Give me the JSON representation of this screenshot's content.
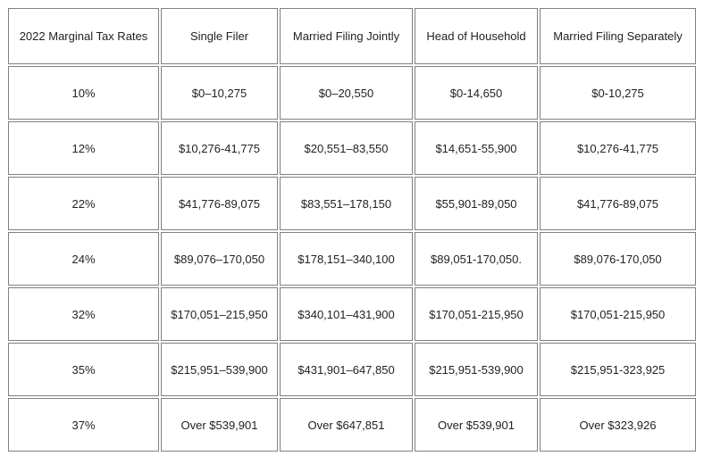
{
  "table": {
    "headers": [
      "2022 Marginal Tax Rates",
      "Single Filer",
      "Married Filing Jointly",
      "Head of Household",
      "Married Filing Separately"
    ],
    "rows": [
      [
        "10%",
        "$0–10,275",
        "$0–20,550",
        "$0-14,650",
        "$0-10,275"
      ],
      [
        "12%",
        "$10,276-41,775",
        "$20,551–83,550",
        "$14,651-55,900",
        "$10,276-41,775"
      ],
      [
        "22%",
        "$41,776-89,075",
        "$83,551–178,150",
        "$55,901-89,050",
        "$41,776-89,075"
      ],
      [
        "24%",
        "$89,076–170,050",
        "$178,151–340,100",
        "$89,051-170,050.",
        "$89,076-170,050"
      ],
      [
        "32%",
        "$170,051–215,950",
        "$340,101–431,900",
        "$170,051-215,950",
        "$170,051-215,950"
      ],
      [
        "35%",
        "$215,951–539,900",
        "$431,901–647,850",
        "$215,951-539,900",
        "$215,951-323,925"
      ],
      [
        "37%",
        "Over $539,901",
        "Over $647,851",
        "Over $539,901",
        "Over $323,926"
      ]
    ]
  }
}
